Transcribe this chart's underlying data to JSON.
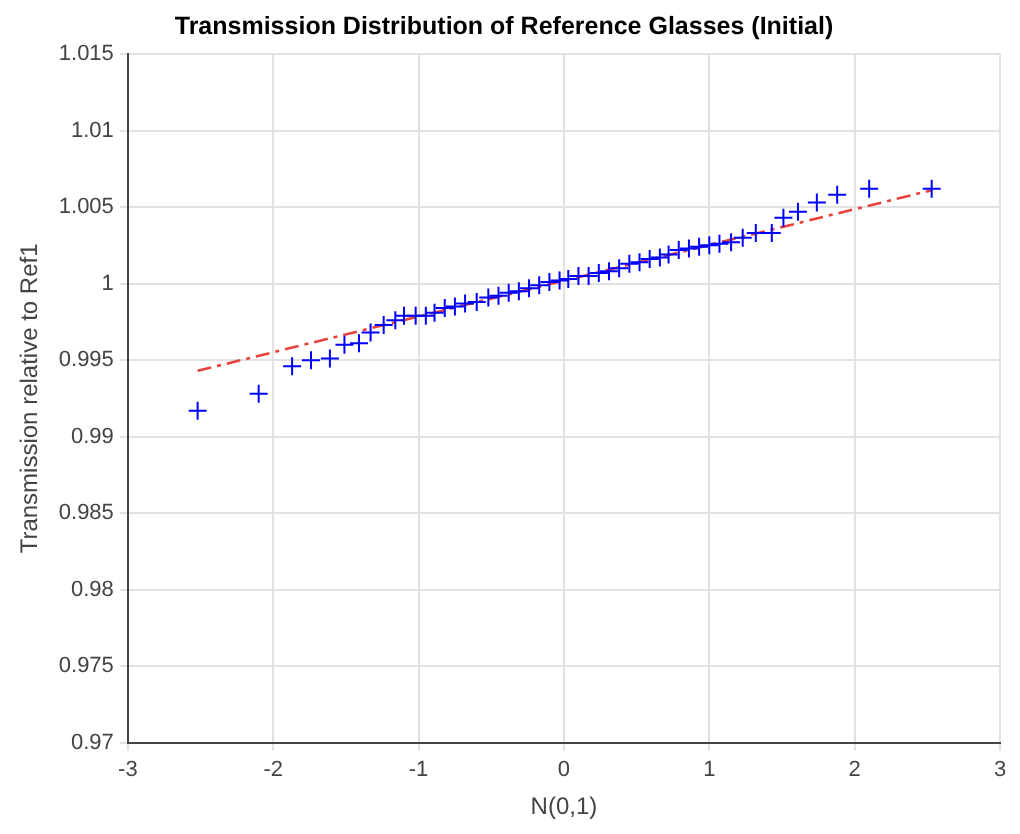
{
  "chart_data": {
    "type": "scatter",
    "title": "Transmission Distribution of Reference Glasses (Initial)",
    "xlabel": "N(0,1)",
    "ylabel": "Transmission relative to Ref1",
    "xlim": [
      -3,
      3
    ],
    "xticks": [
      -3,
      -2,
      -1,
      0,
      1,
      2,
      3
    ],
    "ylim": [
      0.97,
      1.015
    ],
    "yticks": [
      0.97,
      0.975,
      0.98,
      0.985,
      0.99,
      0.995,
      1,
      1.005,
      1.01,
      1.015
    ],
    "grid": true,
    "legend": false,
    "series": [
      {
        "type": "scatter",
        "color": "#0000ff",
        "marker": "cross",
        "x": [
          -2.52,
          -2.1,
          -1.87,
          -1.74,
          -1.61,
          -1.51,
          -1.41,
          -1.33,
          -1.24,
          -1.16,
          -1.1,
          -1.02,
          -0.95,
          -0.89,
          -0.82,
          -0.75,
          -0.68,
          -0.6,
          -0.52,
          -0.45,
          -0.38,
          -0.31,
          -0.24,
          -0.17,
          -0.1,
          -0.03,
          0.03,
          0.1,
          0.17,
          0.24,
          0.31,
          0.38,
          0.45,
          0.52,
          0.59,
          0.66,
          0.72,
          0.79,
          0.86,
          0.93,
          1,
          1.07,
          1.15,
          1.23,
          1.32,
          1.43,
          1.51,
          1.61,
          1.74,
          1.88,
          2.1,
          2.53
        ],
        "values": [
          0.9917,
          0.9928,
          0.9946,
          0.995,
          0.9951,
          0.996,
          0.9961,
          0.9968,
          0.9973,
          0.9976,
          0.9979,
          0.9979,
          0.9979,
          0.9981,
          0.9984,
          0.9985,
          0.9987,
          0.9988,
          0.9991,
          0.9992,
          0.9994,
          0.9995,
          0.9997,
          0.9999,
          1.0001,
          1.0002,
          1.0003,
          1.0005,
          1.0005,
          1.0007,
          1.0008,
          1.001,
          1.0013,
          1.0014,
          1.0016,
          1.0017,
          1.0019,
          1.0022,
          1.0023,
          1.0024,
          1.0025,
          1.0026,
          1.0027,
          1.003,
          1.0033,
          1.0033,
          1.0043,
          1.0047,
          1.0053,
          1.0058,
          1.0062,
          1.0062
        ]
      },
      {
        "type": "line",
        "color": "#e8413a",
        "line_style": "dashed",
        "marker": "none",
        "x": [
          -2.52,
          2.53
        ],
        "values": [
          0.9943,
          1.0061
        ]
      }
    ]
  }
}
